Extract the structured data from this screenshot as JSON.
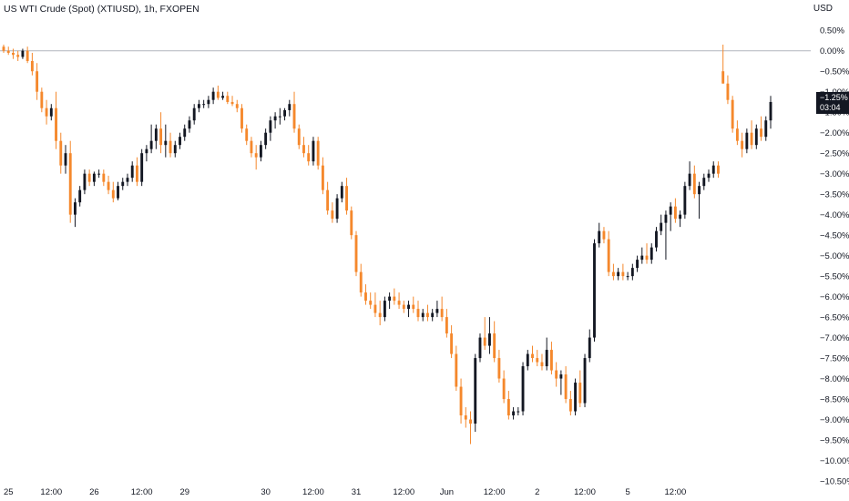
{
  "header": {
    "symbol_title": "US WTI Crude (Spot) (XTIUSD), 1h, FXOPEN",
    "currency": "USD"
  },
  "last_price": {
    "value_label": "−1.25%",
    "countdown": "03:04"
  },
  "colors": {
    "up": "#131722",
    "down": "#f5882c",
    "wick_up": "#2bb673",
    "wick_down": "#e05a7a",
    "zero_line": "#b2b5be",
    "tag_bg": "#131722"
  },
  "chart_data": {
    "type": "candlestick",
    "title": "US WTI Crude (Spot) (XTIUSD), 1h, FXOPEN",
    "y_unit": "%",
    "ylim": [
      -10.5,
      0.75
    ],
    "y_ticks": [
      0.5,
      0.0,
      -0.5,
      -1.0,
      -1.5,
      -2.0,
      -2.5,
      -3.0,
      -3.5,
      -4.0,
      -4.5,
      -5.0,
      -5.5,
      -6.0,
      -6.5,
      -7.0,
      -7.5,
      -8.0,
      -8.5,
      -9.0,
      -9.5,
      -10.0,
      -10.5
    ],
    "y_tick_labels": [
      "0.50%",
      "0.00%",
      "−0.50%",
      "−1.00%",
      "−1.50%",
      "−2.00%",
      "−2.50%",
      "−3.00%",
      "−3.50%",
      "−4.00%",
      "−4.50%",
      "−5.00%",
      "−5.50%",
      "−6.00%",
      "−6.50%",
      "−7.00%",
      "−7.50%",
      "−8.00%",
      "−8.50%",
      "−9.00%",
      "−9.50%",
      "−10.00%",
      "−10.50%"
    ],
    "x_tick_labels": [
      "25",
      "12:00",
      "26",
      "12:00",
      "29",
      "30",
      "12:00",
      "31",
      "12:00",
      "Jun",
      "12:00",
      "2",
      "12:00",
      "5",
      "12:00"
    ],
    "x_tick_bar_index": [
      0,
      10,
      19,
      29,
      38,
      55,
      65,
      74,
      84,
      93,
      103,
      112,
      122,
      131,
      141
    ],
    "reference_line": 0.0,
    "last_value": -1.25,
    "bars": [
      [
        0.1,
        0.15,
        -0.05,
        0.0
      ],
      [
        0.0,
        0.1,
        -0.1,
        -0.05
      ],
      [
        -0.05,
        0.05,
        -0.2,
        -0.1
      ],
      [
        -0.1,
        0.0,
        -0.25,
        -0.15
      ],
      [
        -0.15,
        0.05,
        -0.2,
        0.0
      ],
      [
        0.0,
        0.1,
        -0.3,
        -0.25
      ],
      [
        -0.25,
        -0.05,
        -0.6,
        -0.5
      ],
      [
        -0.5,
        -0.3,
        -1.2,
        -1.0
      ],
      [
        -1.0,
        -0.9,
        -1.5,
        -1.4
      ],
      [
        -1.4,
        -1.2,
        -1.8,
        -1.6
      ],
      [
        -1.6,
        -1.3,
        -1.7,
        -1.4
      ],
      [
        -1.4,
        -1.0,
        -2.4,
        -2.2
      ],
      [
        -2.2,
        -2.0,
        -3.0,
        -2.8
      ],
      [
        -2.8,
        -2.3,
        -3.0,
        -2.5
      ],
      [
        -2.5,
        -2.2,
        -4.2,
        -4.0
      ],
      [
        -4.0,
        -3.6,
        -4.3,
        -3.7
      ],
      [
        -3.7,
        -3.3,
        -3.8,
        -3.4
      ],
      [
        -3.4,
        -2.9,
        -3.5,
        -3.0
      ],
      [
        -3.0,
        -2.9,
        -3.3,
        -3.2
      ],
      [
        -3.2,
        -2.95,
        -3.3,
        -3.0
      ],
      [
        -3.0,
        -2.9,
        -3.1,
        -3.0
      ],
      [
        -3.0,
        -2.9,
        -3.3,
        -3.2
      ],
      [
        -3.2,
        -3.05,
        -3.5,
        -3.4
      ],
      [
        -3.4,
        -3.2,
        -3.7,
        -3.6
      ],
      [
        -3.6,
        -3.2,
        -3.65,
        -3.3
      ],
      [
        -3.3,
        -3.1,
        -3.4,
        -3.2
      ],
      [
        -3.2,
        -3.0,
        -3.3,
        -3.1
      ],
      [
        -3.1,
        -2.7,
        -3.2,
        -2.8
      ],
      [
        -2.8,
        -2.6,
        -3.3,
        -3.2
      ],
      [
        -3.2,
        -2.4,
        -3.3,
        -2.5
      ],
      [
        -2.5,
        -2.3,
        -2.7,
        -2.4
      ],
      [
        -2.4,
        -1.8,
        -2.5,
        -2.2
      ],
      [
        -2.2,
        -1.8,
        -2.4,
        -1.9
      ],
      [
        -1.9,
        -1.5,
        -2.5,
        -2.3
      ],
      [
        -2.3,
        -1.8,
        -2.6,
        -2.2
      ],
      [
        -2.2,
        -2.0,
        -2.6,
        -2.5
      ],
      [
        -2.5,
        -2.2,
        -2.6,
        -2.3
      ],
      [
        -2.3,
        -2.0,
        -2.4,
        -2.1
      ],
      [
        -2.1,
        -1.8,
        -2.2,
        -1.9
      ],
      [
        -1.9,
        -1.6,
        -2.0,
        -1.7
      ],
      [
        -1.7,
        -1.3,
        -1.8,
        -1.4
      ],
      [
        -1.4,
        -1.2,
        -1.5,
        -1.3
      ],
      [
        -1.3,
        -1.2,
        -1.4,
        -1.3
      ],
      [
        -1.3,
        -1.1,
        -1.4,
        -1.2
      ],
      [
        -1.2,
        -0.9,
        -1.3,
        -1.0
      ],
      [
        -1.0,
        -0.85,
        -1.2,
        -1.15
      ],
      [
        -1.15,
        -1.0,
        -1.2,
        -1.1
      ],
      [
        -1.1,
        -1.0,
        -1.3,
        -1.25
      ],
      [
        -1.25,
        -1.1,
        -1.35,
        -1.3
      ],
      [
        -1.3,
        -1.2,
        -1.5,
        -1.4
      ],
      [
        -1.4,
        -1.3,
        -2.0,
        -1.9
      ],
      [
        -1.9,
        -1.8,
        -2.3,
        -2.2
      ],
      [
        -2.2,
        -2.1,
        -2.6,
        -2.5
      ],
      [
        -2.5,
        -2.3,
        -2.9,
        -2.6
      ],
      [
        -2.6,
        -2.2,
        -2.7,
        -2.3
      ],
      [
        -2.3,
        -1.9,
        -2.4,
        -2.0
      ],
      [
        -2.0,
        -1.6,
        -2.2,
        -1.7
      ],
      [
        -1.7,
        -1.5,
        -1.9,
        -1.6
      ],
      [
        -1.6,
        -1.4,
        -1.8,
        -1.6
      ],
      [
        -1.6,
        -1.4,
        -1.7,
        -1.45
      ],
      [
        -1.45,
        -1.2,
        -1.6,
        -1.3
      ],
      [
        -1.3,
        -1.0,
        -2.0,
        -1.9
      ],
      [
        -1.9,
        -1.8,
        -2.4,
        -2.3
      ],
      [
        -2.3,
        -2.1,
        -2.6,
        -2.5
      ],
      [
        -2.5,
        -2.3,
        -2.8,
        -2.7
      ],
      [
        -2.7,
        -2.1,
        -2.8,
        -2.2
      ],
      [
        -2.2,
        -2.1,
        -2.9,
        -2.8
      ],
      [
        -2.8,
        -2.6,
        -3.5,
        -3.4
      ],
      [
        -3.4,
        -3.2,
        -4.0,
        -3.9
      ],
      [
        -3.9,
        -3.7,
        -4.2,
        -4.1
      ],
      [
        -4.1,
        -3.5,
        -4.2,
        -3.6
      ],
      [
        -3.6,
        -3.2,
        -3.7,
        -3.3
      ],
      [
        -3.3,
        -3.1,
        -4.0,
        -3.9
      ],
      [
        -3.9,
        -3.8,
        -4.6,
        -4.5
      ],
      [
        -4.5,
        -4.4,
        -5.5,
        -5.4
      ],
      [
        -5.4,
        -5.2,
        -6.0,
        -5.9
      ],
      [
        -5.9,
        -5.7,
        -6.2,
        -6.1
      ],
      [
        -6.1,
        -5.9,
        -6.3,
        -6.2
      ],
      [
        -6.2,
        -5.9,
        -6.5,
        -6.4
      ],
      [
        -6.4,
        -6.1,
        -6.7,
        -6.5
      ],
      [
        -6.5,
        -6.0,
        -6.6,
        -6.1
      ],
      [
        -6.1,
        -5.9,
        -6.3,
        -6.0
      ],
      [
        -6.0,
        -5.8,
        -6.2,
        -6.1
      ],
      [
        -6.1,
        -5.9,
        -6.3,
        -6.2
      ],
      [
        -6.2,
        -6.1,
        -6.4,
        -6.3
      ],
      [
        -6.3,
        -6.1,
        -6.5,
        -6.2
      ],
      [
        -6.2,
        -6.0,
        -6.4,
        -6.3
      ],
      [
        -6.3,
        -6.1,
        -6.6,
        -6.5
      ],
      [
        -6.5,
        -6.3,
        -6.6,
        -6.4
      ],
      [
        -6.4,
        -6.2,
        -6.6,
        -6.5
      ],
      [
        -6.5,
        -6.3,
        -6.6,
        -6.4
      ],
      [
        -6.4,
        -6.1,
        -6.5,
        -6.3
      ],
      [
        -6.3,
        -6.0,
        -6.6,
        -6.5
      ],
      [
        -6.5,
        -6.3,
        -7.0,
        -6.9
      ],
      [
        -6.9,
        -6.7,
        -7.5,
        -7.4
      ],
      [
        -7.4,
        -7.2,
        -8.3,
        -8.2
      ],
      [
        -8.2,
        -8.0,
        -9.1,
        -8.9
      ],
      [
        -8.9,
        -8.7,
        -9.2,
        -9.0
      ],
      [
        -9.0,
        -8.8,
        -9.6,
        -9.1
      ],
      [
        -9.1,
        -7.4,
        -9.3,
        -7.5
      ],
      [
        -7.5,
        -6.9,
        -7.6,
        -7.0
      ],
      [
        -7.0,
        -6.5,
        -7.3,
        -7.2
      ],
      [
        -7.2,
        -6.5,
        -7.4,
        -6.9
      ],
      [
        -6.9,
        -6.6,
        -7.6,
        -7.5
      ],
      [
        -7.5,
        -7.3,
        -8.1,
        -8.0
      ],
      [
        -8.0,
        -7.8,
        -8.6,
        -8.5
      ],
      [
        -8.5,
        -8.3,
        -9.0,
        -8.9
      ],
      [
        -8.9,
        -8.7,
        -9.0,
        -8.8
      ],
      [
        -8.8,
        -8.7,
        -8.9,
        -8.8
      ],
      [
        -8.8,
        -7.6,
        -8.9,
        -7.7
      ],
      [
        -7.7,
        -7.3,
        -7.8,
        -7.4
      ],
      [
        -7.4,
        -7.2,
        -7.6,
        -7.5
      ],
      [
        -7.5,
        -7.3,
        -7.7,
        -7.6
      ],
      [
        -7.6,
        -7.4,
        -7.8,
        -7.7
      ],
      [
        -7.7,
        -7.0,
        -7.8,
        -7.3
      ],
      [
        -7.3,
        -7.1,
        -7.9,
        -7.8
      ],
      [
        -7.8,
        -7.6,
        -8.2,
        -8.0
      ],
      [
        -8.0,
        -7.8,
        -8.4,
        -7.9
      ],
      [
        -7.9,
        -7.7,
        -8.6,
        -8.5
      ],
      [
        -8.5,
        -8.3,
        -8.9,
        -8.8
      ],
      [
        -8.8,
        -8.0,
        -8.9,
        -8.1
      ],
      [
        -8.1,
        -7.8,
        -8.7,
        -8.6
      ],
      [
        -8.6,
        -7.4,
        -8.7,
        -7.5
      ],
      [
        -7.5,
        -6.8,
        -7.6,
        -7.0
      ],
      [
        -7.0,
        -4.6,
        -7.1,
        -4.7
      ],
      [
        -4.7,
        -4.2,
        -4.8,
        -4.4
      ],
      [
        -4.4,
        -4.3,
        -4.7,
        -4.6
      ],
      [
        -4.6,
        -4.4,
        -5.5,
        -5.4
      ],
      [
        -5.4,
        -5.2,
        -5.6,
        -5.5
      ],
      [
        -5.5,
        -5.3,
        -5.6,
        -5.4
      ],
      [
        -5.4,
        -5.2,
        -5.6,
        -5.5
      ],
      [
        -5.5,
        -5.4,
        -5.6,
        -5.5
      ],
      [
        -5.5,
        -5.2,
        -5.6,
        -5.3
      ],
      [
        -5.3,
        -5.0,
        -5.4,
        -5.1
      ],
      [
        -5.1,
        -4.8,
        -5.2,
        -5.0
      ],
      [
        -5.0,
        -4.7,
        -5.2,
        -5.1
      ],
      [
        -5.1,
        -4.7,
        -5.2,
        -4.8
      ],
      [
        -4.8,
        -4.3,
        -4.9,
        -4.4
      ],
      [
        -4.4,
        -4.0,
        -4.5,
        -4.2
      ],
      [
        -4.2,
        -3.9,
        -5.1,
        -4.0
      ],
      [
        -4.0,
        -3.7,
        -4.4,
        -3.8
      ],
      [
        -3.8,
        -3.6,
        -4.2,
        -4.1
      ],
      [
        -4.1,
        -3.9,
        -4.3,
        -4.0
      ],
      [
        -4.0,
        -3.2,
        -4.1,
        -3.3
      ],
      [
        -3.3,
        -2.7,
        -3.4,
        -3.0
      ],
      [
        -3.0,
        -2.8,
        -3.6,
        -3.5
      ],
      [
        -3.5,
        -3.2,
        -4.1,
        -3.3
      ],
      [
        -3.3,
        -3.0,
        -3.4,
        -3.1
      ],
      [
        -3.1,
        -2.9,
        -3.2,
        -3.0
      ],
      [
        -3.0,
        -2.7,
        -3.1,
        -2.8
      ],
      [
        -2.8,
        -2.7,
        -3.1,
        -3.0
      ],
      [
        -0.5,
        0.15,
        -0.8,
        -0.8
      ],
      [
        -0.8,
        -0.6,
        -1.3,
        -1.2
      ],
      [
        -1.2,
        -1.1,
        -2.0,
        -1.9
      ],
      [
        -1.9,
        -1.7,
        -2.3,
        -2.2
      ],
      [
        -2.2,
        -2.0,
        -2.6,
        -2.4
      ],
      [
        -2.4,
        -1.9,
        -2.5,
        -2.0
      ],
      [
        -2.0,
        -1.7,
        -2.4,
        -2.3
      ],
      [
        -2.3,
        -1.8,
        -2.4,
        -1.9
      ],
      [
        -1.9,
        -1.6,
        -2.2,
        -2.1
      ],
      [
        -2.1,
        -1.6,
        -2.2,
        -1.7
      ],
      [
        -1.7,
        -1.1,
        -1.9,
        -1.25
      ]
    ]
  }
}
